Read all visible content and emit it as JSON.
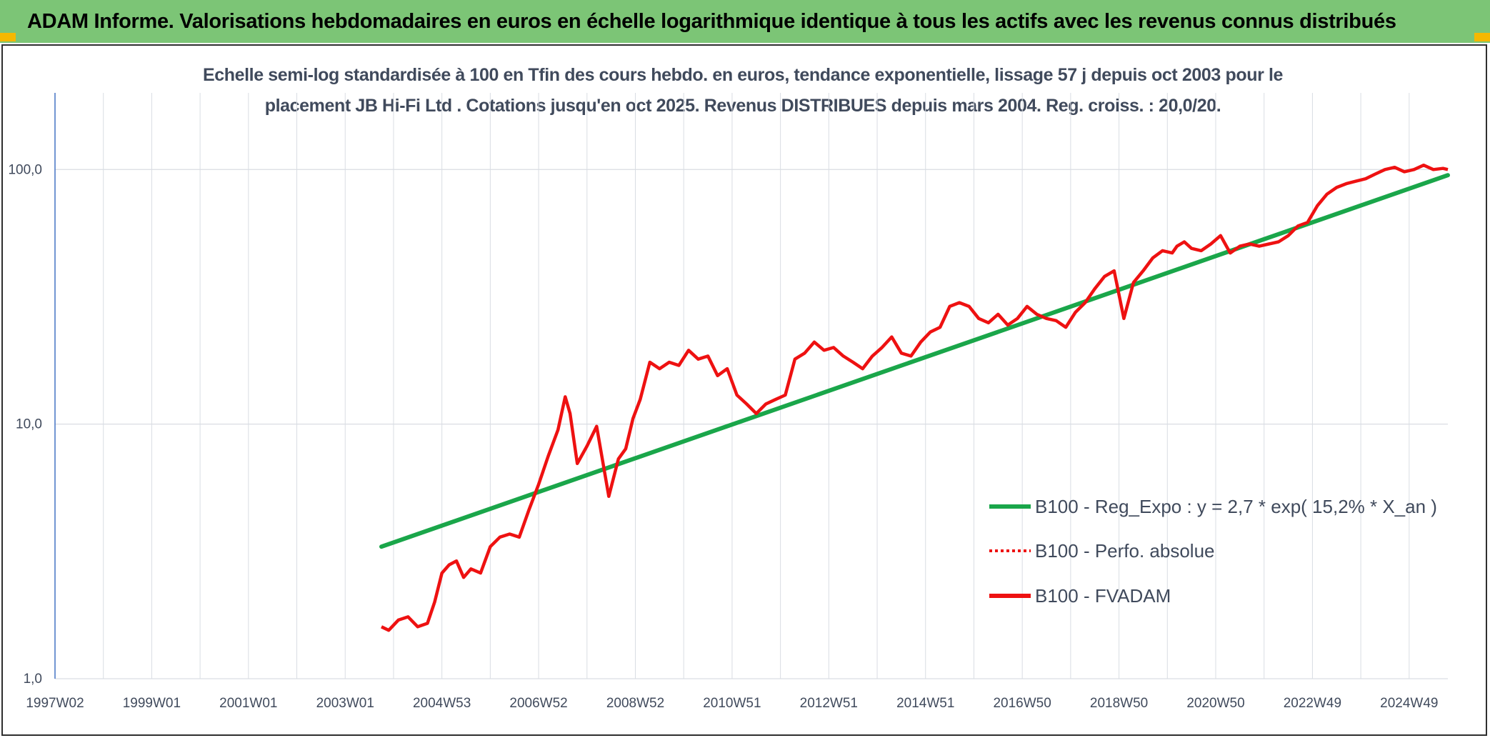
{
  "header": {
    "title": "ADAM Informe. Valorisations hebdomadaires en euros en échelle logarithmique identique à tous les actifs avec les revenus connus distribués"
  },
  "colors": {
    "header_bg": "#7cc576",
    "trend": "#1aa64a",
    "series": "#ee1111",
    "grid": "#d9dde3",
    "axis": "#4472c4",
    "text": "#404a5c",
    "corner": "#f5b800"
  },
  "chart_data": {
    "type": "line",
    "title_line1": "Echelle semi-log standardisée à 100 en Tfin des cours hebdo. en euros, tendance exponentielle, lissage 57 j depuis oct 2003 pour le",
    "title_line2": "placement JB Hi-Fi Ltd . Cotations jusqu'en oct 2025. Revenus DISTRIBUES depuis mars 2004. Reg. croiss. : 20,0/20.",
    "y_scale": "log",
    "ylim": [
      1,
      200
    ],
    "xlim": [
      1997.0,
      2025.8
    ],
    "grid": true,
    "legend_position": "right-middle",
    "y_ticks": [
      {
        "value": 1,
        "label": "1,0"
      },
      {
        "value": 10,
        "label": "10,0"
      },
      {
        "value": 100,
        "label": "100,0"
      }
    ],
    "x_ticks": [
      {
        "value": 1997.0,
        "label": "1997W02"
      },
      {
        "value": 1999.0,
        "label": "1999W01"
      },
      {
        "value": 2001.0,
        "label": "2001W01"
      },
      {
        "value": 2003.0,
        "label": "2003W01"
      },
      {
        "value": 2005.0,
        "label": "2004W53"
      },
      {
        "value": 2007.0,
        "label": "2006W52"
      },
      {
        "value": 2009.0,
        "label": "2008W52"
      },
      {
        "value": 2011.0,
        "label": "2010W51"
      },
      {
        "value": 2013.0,
        "label": "2012W51"
      },
      {
        "value": 2015.0,
        "label": "2014W51"
      },
      {
        "value": 2017.0,
        "label": "2016W50"
      },
      {
        "value": 2019.0,
        "label": "2018W50"
      },
      {
        "value": 2021.0,
        "label": "2020W50"
      },
      {
        "value": 2023.0,
        "label": "2022W49"
      },
      {
        "value": 2025.0,
        "label": "2024W49"
      }
    ],
    "legend": [
      {
        "label": "B100 - Reg_Expo : y = 2,7 * exp( 15,2% *  X_an )",
        "style": "solid",
        "color": "#1aa64a"
      },
      {
        "label": "B100 - Perfo. absolue",
        "style": "dotted",
        "color": "#ee1111"
      },
      {
        "label": "B100 - FVADAM",
        "style": "solid",
        "color": "#ee1111"
      }
    ],
    "series": [
      {
        "name": "B100 - Reg_Expo : y = 2,7 * exp( 15,2% *  X_an )",
        "x": [
          2003.75,
          2025.8
        ],
        "y": [
          3.3,
          95
        ]
      },
      {
        "name": "B100 - FVADAM",
        "x": [
          2003.75,
          2003.9,
          2004.1,
          2004.3,
          2004.5,
          2004.7,
          2004.85,
          2005.0,
          2005.15,
          2005.3,
          2005.45,
          2005.6,
          2005.8,
          2006.0,
          2006.2,
          2006.4,
          2006.6,
          2006.8,
          2007.0,
          2007.2,
          2007.4,
          2007.55,
          2007.65,
          2007.8,
          2008.0,
          2008.2,
          2008.45,
          2008.65,
          2008.8,
          2008.95,
          2009.1,
          2009.3,
          2009.5,
          2009.7,
          2009.9,
          2010.1,
          2010.3,
          2010.5,
          2010.7,
          2010.9,
          2011.1,
          2011.3,
          2011.5,
          2011.7,
          2011.9,
          2012.1,
          2012.3,
          2012.5,
          2012.7,
          2012.9,
          2013.1,
          2013.3,
          2013.5,
          2013.7,
          2013.9,
          2014.1,
          2014.3,
          2014.5,
          2014.7,
          2014.9,
          2015.1,
          2015.3,
          2015.5,
          2015.7,
          2015.9,
          2016.1,
          2016.3,
          2016.5,
          2016.7,
          2016.9,
          2017.1,
          2017.3,
          2017.5,
          2017.7,
          2017.9,
          2018.1,
          2018.3,
          2018.5,
          2018.7,
          2018.9,
          2019.1,
          2019.3,
          2019.5,
          2019.7,
          2019.9,
          2020.1,
          2020.2,
          2020.35,
          2020.5,
          2020.7,
          2020.9,
          2021.1,
          2021.3,
          2021.5,
          2021.7,
          2021.9,
          2022.1,
          2022.3,
          2022.5,
          2022.7,
          2022.9,
          2023.1,
          2023.3,
          2023.5,
          2023.7,
          2023.9,
          2024.1,
          2024.3,
          2024.5,
          2024.7,
          2024.9,
          2025.1,
          2025.3,
          2025.5,
          2025.7,
          2025.8
        ],
        "y": [
          1.6,
          1.55,
          1.7,
          1.75,
          1.6,
          1.65,
          2.0,
          2.6,
          2.8,
          2.9,
          2.5,
          2.7,
          2.6,
          3.3,
          3.6,
          3.7,
          3.6,
          4.6,
          5.8,
          7.5,
          9.5,
          12.8,
          11.0,
          7.0,
          8.2,
          9.8,
          5.2,
          7.3,
          8.0,
          10.5,
          12.5,
          17.5,
          16.5,
          17.5,
          17.0,
          19.5,
          18.0,
          18.5,
          15.5,
          16.5,
          13.0,
          12.0,
          11.0,
          12.0,
          12.5,
          13.0,
          18.0,
          19.0,
          21.0,
          19.5,
          20.0,
          18.5,
          17.5,
          16.5,
          18.5,
          20.0,
          22.0,
          19.0,
          18.5,
          21.0,
          23.0,
          24.0,
          29.0,
          30.0,
          29.0,
          26.0,
          25.0,
          27.0,
          24.5,
          26.0,
          29.0,
          27.0,
          26.0,
          25.5,
          24.0,
          27.5,
          30.0,
          34.0,
          38.0,
          40.0,
          26.0,
          36.0,
          40.0,
          45.0,
          48.0,
          47.0,
          50.0,
          52.0,
          49.0,
          48.0,
          51.0,
          55.0,
          47.0,
          50.0,
          51.0,
          50.0,
          51.0,
          52.0,
          55.0,
          60.0,
          62.0,
          72.0,
          80.0,
          85.0,
          88.0,
          90.0,
          92.0,
          96.0,
          100.0,
          102.0,
          98.0,
          100.0,
          104.0,
          100.0,
          101.0,
          100.0
        ]
      }
    ]
  }
}
